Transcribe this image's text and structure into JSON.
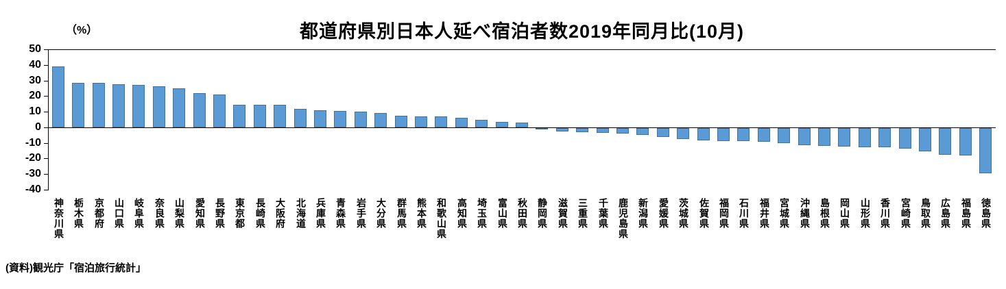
{
  "header": {
    "title": "都道府県別日本人延べ宿泊者数2019年同月比(10月)",
    "unit_label": "（%）"
  },
  "footer": {
    "source": "(資料)観光庁「宿泊旅行統計」"
  },
  "chart_data": {
    "type": "bar",
    "title": "都道府県別日本人延べ宿泊者数2019年同月比(10月)",
    "xlabel": "",
    "ylabel": "（%）",
    "ylim": [
      -40,
      50
    ],
    "ytick_step": 10,
    "grid": false,
    "legend": "none",
    "bar_fill": "#5B9BD5",
    "bar_border": "#41719C",
    "categories": [
      "神奈川県",
      "栃木県",
      "京都府",
      "山口県",
      "岐阜県",
      "奈良県",
      "山梨県",
      "愛知県",
      "長野県",
      "東京都",
      "長崎県",
      "大阪府",
      "北海道",
      "兵庫県",
      "青森県",
      "岩手県",
      "大分県",
      "群馬県",
      "熊本県",
      "和歌山県",
      "高知県",
      "埼玉県",
      "富山県",
      "秋田県",
      "静岡県",
      "滋賀県",
      "三重県",
      "千葉県",
      "鹿児島県",
      "新潟県",
      "愛媛県",
      "茨城県",
      "佐賀県",
      "福岡県",
      "石川県",
      "福井県",
      "宮城県",
      "沖縄県",
      "島根県",
      "岡山県",
      "山形県",
      "香川県",
      "宮崎県",
      "鳥取県",
      "広島県",
      "福島県",
      "徳島県"
    ],
    "values": [
      39,
      28.5,
      28.5,
      27.5,
      27,
      26.5,
      25,
      22,
      21,
      14.5,
      14.5,
      14.5,
      12,
      11,
      10.5,
      10,
      9,
      7.5,
      7,
      7,
      6,
      5,
      3.5,
      3,
      -0.5,
      -2,
      -2.5,
      -3,
      -3.5,
      -4.5,
      -5.5,
      -7,
      -8,
      -8.5,
      -8.5,
      -9,
      -9.5,
      -11,
      -11.5,
      -12,
      -12.5,
      -12.5,
      -13,
      -15,
      -17,
      -17.5,
      -29
    ]
  }
}
